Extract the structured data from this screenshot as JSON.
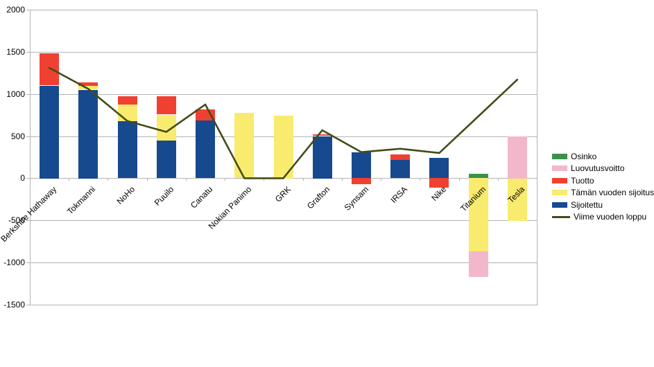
{
  "chart_data": {
    "type": "bar",
    "subtype": "stacked-bars-with-line-overlay",
    "title": "",
    "xlabel": "",
    "ylabel": "",
    "grid": true,
    "ylim": [
      -1500,
      2000
    ],
    "ytick_step": 500,
    "yticks": [
      2000,
      1500,
      1000,
      500,
      0,
      -500,
      -1000,
      -1500
    ],
    "categories": [
      "Berkshire Hathaway",
      "Tokmanni",
      "NoHo",
      "Puuilo",
      "Canatu",
      "Nokian Panimo",
      "GRK",
      "Grafton",
      "Synsam",
      "IRSA",
      "Nike",
      "Titanium",
      "Tesla"
    ],
    "series": [
      {
        "name": "Sijoitettu",
        "kind": "bar",
        "color": "#17498f",
        "values": [
          1100,
          1050,
          675,
          455,
          685,
          0,
          0,
          500,
          305,
          215,
          240,
          0,
          0
        ]
      },
      {
        "name": "Tämän vuoden sijoitus",
        "kind": "bar",
        "color": "#f8eb6e",
        "values": [
          0,
          45,
          200,
          300,
          0,
          775,
          745,
          0,
          0,
          0,
          0,
          -870,
          -510
        ]
      },
      {
        "name": "Tuotto",
        "kind": "bar",
        "color": "#f04031",
        "values": [
          380,
          45,
          100,
          215,
          130,
          0,
          0,
          20,
          -75,
          65,
          -115,
          0,
          0
        ]
      },
      {
        "name": "Luovutusvoitto",
        "kind": "bar",
        "color": "#f3b7cc",
        "values": [
          0,
          0,
          0,
          0,
          0,
          0,
          0,
          0,
          0,
          0,
          0,
          -300,
          500
        ]
      },
      {
        "name": "Osinko",
        "kind": "bar",
        "color": "#3b9148",
        "values": [
          0,
          0,
          0,
          0,
          0,
          0,
          0,
          0,
          0,
          0,
          0,
          50,
          0
        ]
      },
      {
        "name": "Viime vuoden loppu",
        "kind": "line",
        "color": "#424c16",
        "values": [
          1310,
          1060,
          680,
          550,
          875,
          0,
          0,
          570,
          310,
          350,
          300,
          735,
          1170
        ]
      }
    ],
    "stack_order": [
      "Sijoitettu",
      "Tämän vuoden sijoitus",
      "Tuotto",
      "Luovutusvoitto",
      "Osinko"
    ],
    "legend": {
      "position": "right",
      "items_top_to_bottom": [
        "Osinko",
        "Luovutusvoitto",
        "Tuotto",
        "Tämän vuoden sijoitus",
        "Sijoitettu",
        "Viime vuoden loppu"
      ]
    }
  },
  "colors": {
    "background": "#ffffff",
    "grid": "#b3b3b3",
    "text": "#000000"
  }
}
